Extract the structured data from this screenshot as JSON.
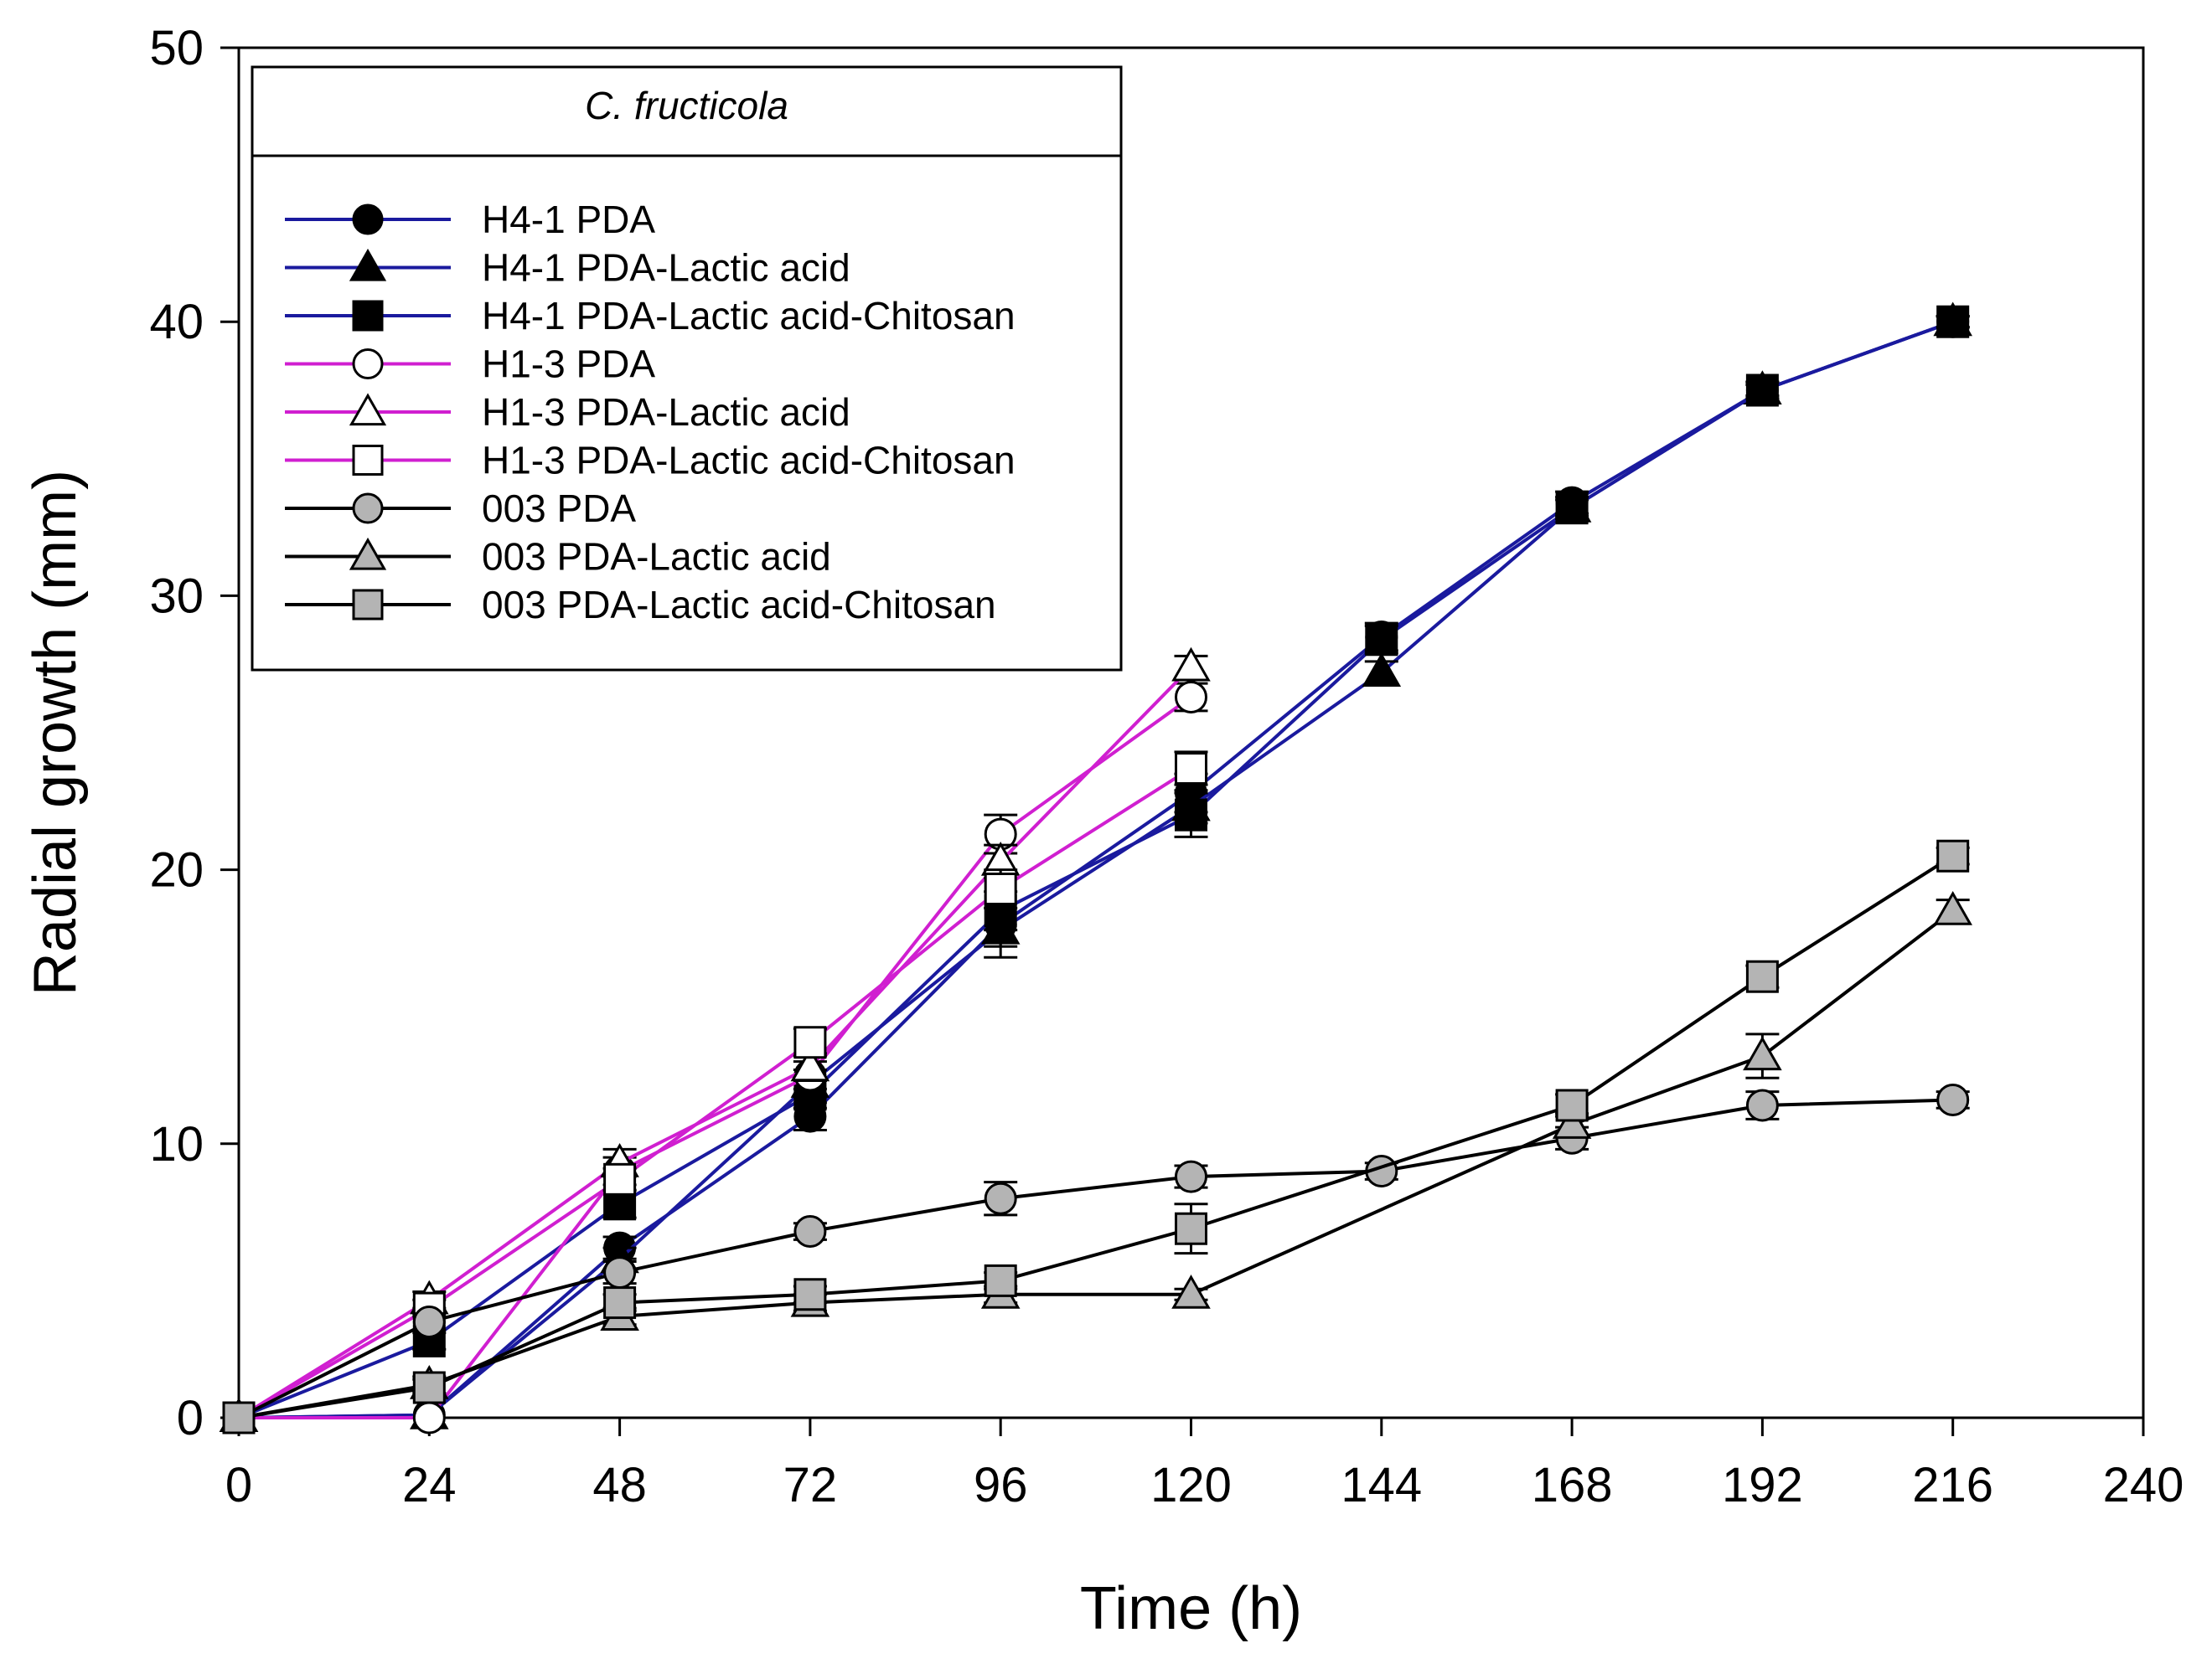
{
  "chart_data": {
    "type": "line",
    "title": "",
    "xlabel": "Time (h)",
    "ylabel": "Radial growth (mm)",
    "xlim": [
      0,
      240
    ],
    "ylim": [
      0,
      50
    ],
    "x_ticks": [
      0,
      24,
      48,
      72,
      96,
      120,
      144,
      168,
      192,
      216,
      240
    ],
    "y_ticks": [
      0,
      10,
      20,
      30,
      40,
      50
    ],
    "x_tick_labels": [
      "0",
      "24",
      "48",
      "72",
      "96",
      "120",
      "144",
      "168",
      "192",
      "216",
      "240"
    ],
    "y_tick_labels": [
      "0",
      "10",
      "20",
      "30",
      "40",
      "50"
    ],
    "grid": false,
    "legend": {
      "title": "C. fructicola",
      "placement": "top-left"
    },
    "series": [
      {
        "name": "H4-1 PDA",
        "color": "#1a1a9e",
        "marker": "circle",
        "fill": "#000000",
        "x": [
          0,
          24,
          48,
          72,
          96,
          120,
          144,
          168,
          192,
          216
        ],
        "y": [
          0,
          0.1,
          6.2,
          11.0,
          18.0,
          22.8,
          28.5,
          33.4,
          37.5,
          40.0
        ],
        "err": [
          0,
          0,
          0.4,
          0.5,
          0.8,
          0.7,
          0.5,
          0.4,
          0.3,
          0.2
        ]
      },
      {
        "name": "H4-1 PDA-Lactic acid",
        "color": "#1a1a9e",
        "marker": "triangle",
        "fill": "#000000",
        "x": [
          0,
          24,
          48,
          72,
          96,
          120,
          144,
          168,
          192,
          216
        ],
        "y": [
          0,
          0.1,
          5.8,
          12.2,
          17.8,
          22.3,
          27.2,
          33.2,
          37.5,
          40.0
        ],
        "err": [
          0,
          0,
          0.4,
          0.5,
          1.0,
          0.6,
          0.4,
          0.3,
          0.2,
          0.2
        ]
      },
      {
        "name": "H4-1 PDA-Lactic acid-Chitosan",
        "color": "#1a1a9e",
        "marker": "square",
        "fill": "#000000",
        "x": [
          0,
          24,
          48,
          72,
          96,
          120,
          144,
          168,
          192,
          216
        ],
        "y": [
          0,
          2.8,
          7.8,
          11.8,
          18.5,
          22.0,
          28.4,
          33.2,
          37.5,
          40.0
        ],
        "err": [
          0,
          0.3,
          0.5,
          0.5,
          0.7,
          0.8,
          0.5,
          0.4,
          0.3,
          0.2
        ]
      },
      {
        "name": "H1-3 PDA",
        "color": "#d01fd0",
        "marker": "circle",
        "fill": "#ffffff",
        "x": [
          0,
          24,
          48,
          72,
          96,
          120
        ],
        "y": [
          0,
          0.0,
          9.0,
          12.5,
          21.3,
          26.3
        ],
        "err": [
          0,
          0,
          0.5,
          0.5,
          0.7,
          0.5
        ]
      },
      {
        "name": "H1-3 PDA-Lactic acid",
        "color": "#d01fd0",
        "marker": "triangle",
        "fill": "#ffffff",
        "x": [
          0,
          24,
          48,
          72,
          96,
          120
        ],
        "y": [
          0,
          4.3,
          9.3,
          12.8,
          20.3,
          27.4
        ],
        "err": [
          0,
          0.3,
          0.5,
          0.5,
          0.6,
          0.4
        ]
      },
      {
        "name": "H1-3 PDA-Lactic acid-Chitosan",
        "color": "#d01fd0",
        "marker": "square",
        "fill": "#ffffff",
        "x": [
          0,
          24,
          48,
          72,
          96,
          120
        ],
        "y": [
          0,
          4.0,
          8.7,
          13.7,
          19.3,
          23.7
        ],
        "err": [
          0,
          0.3,
          0.4,
          0.5,
          0.7,
          0.6
        ]
      },
      {
        "name": "003 PDA",
        "color": "#000000",
        "marker": "circle",
        "fill": "#b4b4b4",
        "x": [
          0,
          24,
          48,
          72,
          96,
          120,
          144,
          168,
          192,
          216
        ],
        "y": [
          0,
          3.5,
          5.3,
          6.8,
          8.0,
          8.8,
          9.0,
          10.2,
          11.4,
          11.6
        ],
        "err": [
          0,
          0.3,
          0.4,
          0.3,
          0.6,
          0.4,
          0.3,
          0.4,
          0.5,
          0.3
        ]
      },
      {
        "name": "003 PDA-Lactic acid",
        "color": "#000000",
        "marker": "triangle",
        "fill": "#b4b4b4",
        "x": [
          0,
          24,
          48,
          72,
          96,
          120,
          168,
          192,
          216
        ],
        "y": [
          0,
          1.2,
          3.7,
          4.2,
          4.5,
          4.5,
          10.7,
          13.2,
          18.5
        ],
        "err": [
          0,
          0.3,
          0.3,
          0.3,
          0.3,
          0.2,
          0.4,
          0.8,
          0.4
        ]
      },
      {
        "name": "003 PDA-Lactic acid-Chitosan",
        "color": "#000000",
        "marker": "square",
        "fill": "#b4b4b4",
        "x": [
          0,
          24,
          48,
          72,
          96,
          120,
          168,
          192,
          216
        ],
        "y": [
          0,
          1.1,
          4.2,
          4.5,
          5.0,
          6.9,
          11.4,
          16.1,
          20.5
        ],
        "err": [
          0,
          0.3,
          0.3,
          0.3,
          0.3,
          0.9,
          0.4,
          0.4,
          0.3
        ]
      }
    ]
  }
}
